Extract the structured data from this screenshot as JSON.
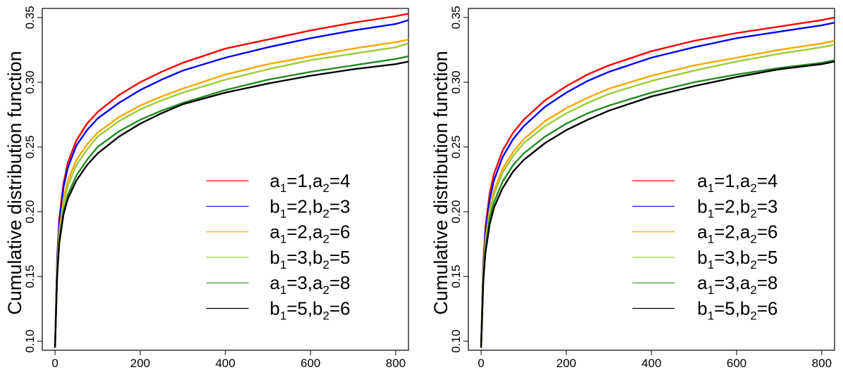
{
  "chart_data": [
    {
      "type": "line",
      "panel": "left",
      "ylabel": "Cumulative distribution function",
      "xlabel": "",
      "xlim": [
        -30,
        830
      ],
      "ylim": [
        0.093,
        0.357
      ],
      "xticks": [
        "0",
        "200",
        "400",
        "600",
        "800"
      ],
      "yticks": [
        "0.10",
        "0.15",
        "0.20",
        "0.25",
        "0.30",
        "0.35"
      ],
      "legend_position": "bottom-right",
      "series": [
        {
          "name": "a1=1,a2=4",
          "label_main": [
            "a",
            "=1,a",
            "=4"
          ],
          "label_subs": [
            "1",
            "2"
          ],
          "color": "#ff0000",
          "x": [
            0,
            5,
            10,
            20,
            30,
            50,
            75,
            100,
            150,
            200,
            250,
            300,
            400,
            500,
            600,
            700,
            800,
            830
          ],
          "y": [
            0.095,
            0.165,
            0.195,
            0.222,
            0.238,
            0.255,
            0.268,
            0.277,
            0.29,
            0.3,
            0.308,
            0.315,
            0.326,
            0.333,
            0.34,
            0.346,
            0.351,
            0.353
          ]
        },
        {
          "name": "b1=2,b2=3",
          "label_main": [
            "b",
            "=2,b",
            "=3"
          ],
          "label_subs": [
            "1",
            "2"
          ],
          "color": "#0000ff",
          "x": [
            0,
            5,
            10,
            20,
            30,
            50,
            75,
            100,
            150,
            200,
            250,
            300,
            400,
            500,
            600,
            700,
            800,
            830
          ],
          "y": [
            0.095,
            0.163,
            0.192,
            0.219,
            0.234,
            0.251,
            0.263,
            0.272,
            0.284,
            0.294,
            0.302,
            0.309,
            0.319,
            0.327,
            0.334,
            0.34,
            0.345,
            0.348
          ]
        },
        {
          "name": "a1=2,a2=6",
          "label_main": [
            "a",
            "=2,a",
            "=6"
          ],
          "label_subs": [
            "1",
            "2"
          ],
          "color": "#ffa500",
          "x": [
            0,
            5,
            10,
            20,
            30,
            50,
            75,
            100,
            150,
            200,
            250,
            300,
            400,
            500,
            600,
            700,
            800,
            830
          ],
          "y": [
            0.095,
            0.158,
            0.185,
            0.21,
            0.224,
            0.24,
            0.252,
            0.261,
            0.273,
            0.282,
            0.289,
            0.295,
            0.306,
            0.314,
            0.32,
            0.326,
            0.331,
            0.333
          ]
        },
        {
          "name": "b1=3,b2=5",
          "label_main": [
            "b",
            "=3,b",
            "=5"
          ],
          "label_subs": [
            "1",
            "2"
          ],
          "color": "#9acd32",
          "x": [
            0,
            5,
            10,
            20,
            30,
            50,
            75,
            100,
            150,
            200,
            250,
            300,
            400,
            500,
            600,
            700,
            800,
            830
          ],
          "y": [
            0.095,
            0.156,
            0.182,
            0.206,
            0.22,
            0.236,
            0.248,
            0.258,
            0.27,
            0.279,
            0.286,
            0.292,
            0.302,
            0.31,
            0.317,
            0.322,
            0.327,
            0.33
          ]
        },
        {
          "name": "a1=3,a2=8",
          "label_main": [
            "a",
            "=3,a",
            "=8"
          ],
          "label_subs": [
            "1",
            "2"
          ],
          "color": "#228b22",
          "x": [
            0,
            5,
            10,
            20,
            30,
            50,
            75,
            100,
            150,
            200,
            250,
            300,
            400,
            500,
            600,
            700,
            800,
            830
          ],
          "y": [
            0.095,
            0.153,
            0.178,
            0.2,
            0.213,
            0.228,
            0.24,
            0.25,
            0.262,
            0.271,
            0.278,
            0.284,
            0.294,
            0.302,
            0.308,
            0.313,
            0.318,
            0.32
          ]
        },
        {
          "name": "b1=5,b2=6",
          "label_main": [
            "b",
            "=5,b",
            "=6"
          ],
          "label_subs": [
            "1",
            "2"
          ],
          "color": "#000000",
          "x": [
            0,
            5,
            10,
            20,
            30,
            50,
            75,
            100,
            150,
            200,
            250,
            300,
            400,
            500,
            600,
            700,
            800,
            830
          ],
          "y": [
            0.095,
            0.151,
            0.176,
            0.198,
            0.21,
            0.224,
            0.236,
            0.245,
            0.258,
            0.268,
            0.276,
            0.283,
            0.292,
            0.299,
            0.305,
            0.31,
            0.314,
            0.316
          ]
        }
      ]
    },
    {
      "type": "line",
      "panel": "right",
      "ylabel": "Cumulative distribution function",
      "xlabel": "",
      "xlim": [
        -30,
        830
      ],
      "ylim": [
        0.093,
        0.357
      ],
      "xticks": [
        "0",
        "200",
        "400",
        "600",
        "800"
      ],
      "yticks": [
        "0.10",
        "0.15",
        "0.20",
        "0.25",
        "0.30",
        "0.35"
      ],
      "legend_position": "bottom-right",
      "series": [
        {
          "name": "a1=1,a2=4",
          "label_main": [
            "a",
            "=1,a",
            "=4"
          ],
          "label_subs": [
            "1",
            "2"
          ],
          "color": "#ff0000",
          "x": [
            0,
            5,
            10,
            20,
            30,
            50,
            75,
            100,
            150,
            200,
            250,
            300,
            400,
            500,
            600,
            700,
            800,
            830
          ],
          "y": [
            0.095,
            0.16,
            0.188,
            0.214,
            0.229,
            0.247,
            0.261,
            0.271,
            0.286,
            0.297,
            0.306,
            0.313,
            0.324,
            0.332,
            0.338,
            0.343,
            0.348,
            0.35
          ]
        },
        {
          "name": "b1=2,b2=3",
          "label_main": [
            "b",
            "=2,b",
            "=3"
          ],
          "label_subs": [
            "1",
            "2"
          ],
          "color": "#0000ff",
          "x": [
            0,
            5,
            10,
            20,
            30,
            50,
            75,
            100,
            150,
            200,
            250,
            300,
            400,
            500,
            600,
            700,
            800,
            830
          ],
          "y": [
            0.095,
            0.157,
            0.184,
            0.209,
            0.224,
            0.242,
            0.256,
            0.266,
            0.281,
            0.292,
            0.301,
            0.308,
            0.319,
            0.327,
            0.334,
            0.339,
            0.344,
            0.346
          ]
        },
        {
          "name": "a1=2,a2=6",
          "label_main": [
            "a",
            "=2,a",
            "=6"
          ],
          "label_subs": [
            "1",
            "2"
          ],
          "color": "#ffa500",
          "x": [
            0,
            5,
            10,
            20,
            30,
            50,
            75,
            100,
            150,
            200,
            250,
            300,
            400,
            500,
            600,
            700,
            800,
            830
          ],
          "y": [
            0.095,
            0.153,
            0.178,
            0.202,
            0.216,
            0.233,
            0.246,
            0.256,
            0.27,
            0.28,
            0.288,
            0.295,
            0.305,
            0.313,
            0.319,
            0.325,
            0.33,
            0.332
          ]
        },
        {
          "name": "b1=3,b2=5",
          "label_main": [
            "b",
            "=3,b",
            "=5"
          ],
          "label_subs": [
            "1",
            "2"
          ],
          "color": "#9acd32",
          "x": [
            0,
            5,
            10,
            20,
            30,
            50,
            75,
            100,
            150,
            200,
            250,
            300,
            400,
            500,
            600,
            700,
            800,
            830
          ],
          "y": [
            0.095,
            0.151,
            0.175,
            0.199,
            0.213,
            0.23,
            0.243,
            0.253,
            0.266,
            0.276,
            0.284,
            0.291,
            0.301,
            0.309,
            0.316,
            0.322,
            0.327,
            0.329
          ]
        },
        {
          "name": "a1=3,a2=8",
          "label_main": [
            "a",
            "=3,a",
            "=8"
          ],
          "label_subs": [
            "1",
            "2"
          ],
          "color": "#228b22",
          "x": [
            0,
            5,
            10,
            20,
            30,
            50,
            75,
            100,
            150,
            200,
            250,
            300,
            400,
            500,
            600,
            700,
            800,
            830
          ],
          "y": [
            0.095,
            0.148,
            0.171,
            0.194,
            0.207,
            0.223,
            0.236,
            0.245,
            0.258,
            0.268,
            0.276,
            0.282,
            0.292,
            0.3,
            0.306,
            0.311,
            0.315,
            0.317
          ]
        },
        {
          "name": "b1=5,b2=6",
          "label_main": [
            "b",
            "=5,b",
            "=6"
          ],
          "label_subs": [
            "1",
            "2"
          ],
          "color": "#000000",
          "x": [
            0,
            5,
            10,
            20,
            30,
            50,
            75,
            100,
            150,
            200,
            250,
            300,
            400,
            500,
            600,
            700,
            800,
            830
          ],
          "y": [
            0.095,
            0.146,
            0.168,
            0.19,
            0.203,
            0.218,
            0.231,
            0.24,
            0.253,
            0.263,
            0.271,
            0.278,
            0.289,
            0.297,
            0.304,
            0.31,
            0.314,
            0.316
          ]
        }
      ]
    }
  ]
}
